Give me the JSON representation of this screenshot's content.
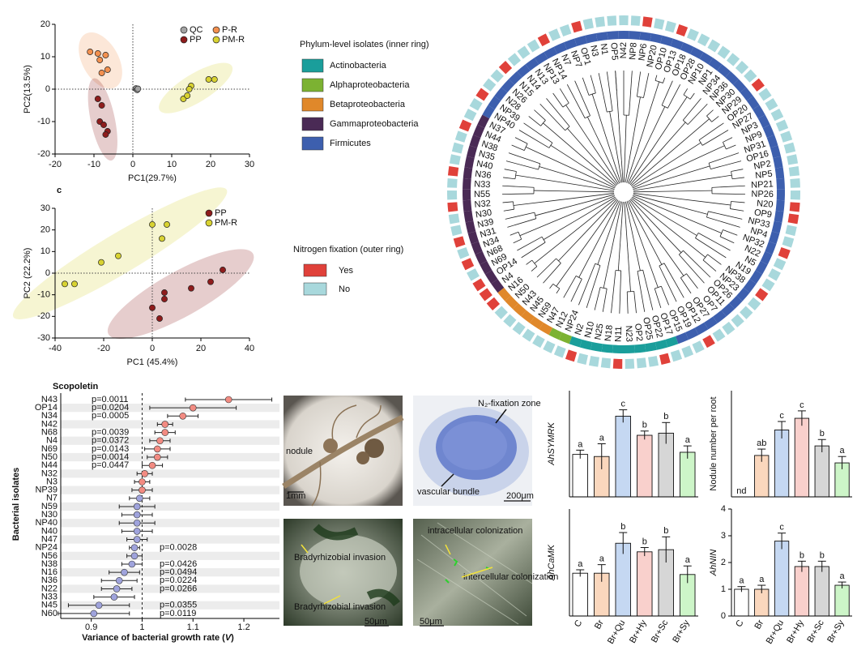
{
  "chart_data": [
    {
      "type": "scatter",
      "xlabel": "PC1(29.7%)",
      "ylabel": "PC2(13.5%)",
      "xlim": [
        -20,
        30
      ],
      "ylim": [
        -20,
        20
      ],
      "xticks": [
        -20,
        -10,
        0,
        10,
        20,
        30
      ],
      "yticks": [
        -20,
        -10,
        0,
        10,
        20
      ],
      "series": [
        {
          "name": "QC",
          "color": "#a3a3a3",
          "ellipse": false,
          "x": [
            0.8,
            1.1,
            1.3
          ],
          "y": [
            0.2,
            -0.2,
            0.1
          ]
        },
        {
          "name": "P-R",
          "color": "#f3904f",
          "ellipse": true,
          "x": [
            -11,
            -9,
            -7,
            -8.5,
            -6.5,
            -8
          ],
          "y": [
            11.5,
            11,
            10.5,
            9,
            6,
            5
          ]
        },
        {
          "name": "PP",
          "color": "#8e1c1c",
          "ellipse": true,
          "x": [
            -9,
            -8,
            -8.5,
            -7.5,
            -6.5,
            -7
          ],
          "y": [
            -3,
            -5,
            -10,
            -11,
            -13,
            -14
          ]
        },
        {
          "name": "PM-R",
          "color": "#d8d232",
          "ellipse": true,
          "x": [
            13,
            14,
            15,
            14.5,
            19.5,
            21
          ],
          "y": [
            -3,
            -2,
            1,
            0,
            3,
            3
          ]
        }
      ]
    },
    {
      "type": "scatter",
      "panel": "c",
      "xlabel": "PC1 (45.4%)",
      "ylabel": "PC2 (22.2%)",
      "xlim": [
        -40,
        40
      ],
      "ylim": [
        -30,
        30
      ],
      "xticks": [
        -40,
        -20,
        0,
        20,
        40
      ],
      "yticks": [
        -30,
        -20,
        -10,
        0,
        10,
        20,
        30
      ],
      "series": [
        {
          "name": "PP",
          "color": "#8e1c1c",
          "ellipse": true,
          "x": [
            29,
            24,
            16,
            5,
            5,
            0,
            3
          ],
          "y": [
            1.5,
            -4,
            -7,
            -9,
            -12,
            -16,
            -21
          ]
        },
        {
          "name": "PM-R",
          "color": "#d8d232",
          "ellipse": true,
          "x": [
            0,
            4,
            6,
            -21,
            -14,
            -36,
            -32
          ],
          "y": [
            22.5,
            16,
            22.5,
            5,
            8,
            -5,
            -5
          ]
        }
      ]
    },
    {
      "type": "tree",
      "phylum_title": "Phylum-level isolates (inner ring)",
      "nfix_title": "Nitrogen fixation (outer ring)",
      "phyla": [
        {
          "name": "Actinobacteria",
          "color": "#1a9e9b"
        },
        {
          "name": "Alphaproteobacteria",
          "color": "#7cb232"
        },
        {
          "name": "Betaproteobacteria",
          "color": "#e0882a"
        },
        {
          "name": "Gammaproteobacteria",
          "color": "#4a2a55"
        },
        {
          "name": "Firmicutes",
          "color": "#3d5fae"
        }
      ],
      "nfix": [
        {
          "name": "Yes",
          "color": "#e0413a"
        },
        {
          "name": "No",
          "color": "#a8d8dc"
        }
      ],
      "leaves": [
        {
          "name": "N42",
          "phylum": "Firmicutes",
          "nfix": "No"
        },
        {
          "name": "NP8",
          "phylum": "Firmicutes",
          "nfix": "No"
        },
        {
          "name": "NP6",
          "phylum": "Firmicutes",
          "nfix": "Yes"
        },
        {
          "name": "NP20",
          "phylum": "Firmicutes",
          "nfix": "No"
        },
        {
          "name": "OP10",
          "phylum": "Firmicutes",
          "nfix": "No"
        },
        {
          "name": "OP13",
          "phylum": "Firmicutes",
          "nfix": "Yes"
        },
        {
          "name": "OP18",
          "phylum": "Firmicutes",
          "nfix": "No"
        },
        {
          "name": "OP28",
          "phylum": "Firmicutes",
          "nfix": "No"
        },
        {
          "name": "NP10",
          "phylum": "Firmicutes",
          "nfix": "No"
        },
        {
          "name": "NP1",
          "phylum": "Firmicutes",
          "nfix": "No"
        },
        {
          "name": "NP34",
          "phylum": "Firmicutes",
          "nfix": "No"
        },
        {
          "name": "NP36",
          "phylum": "Firmicutes",
          "nfix": "No"
        },
        {
          "name": "NP30",
          "phylum": "Firmicutes",
          "nfix": "No"
        },
        {
          "name": "NP29",
          "phylum": "Firmicutes",
          "nfix": "Yes"
        },
        {
          "name": "OP20",
          "phylum": "Firmicutes",
          "nfix": "No"
        },
        {
          "name": "NP27",
          "phylum": "Firmicutes",
          "nfix": "No"
        },
        {
          "name": "NP3",
          "phylum": "Firmicutes",
          "nfix": "No"
        },
        {
          "name": "NP9",
          "phylum": "Firmicutes",
          "nfix": "No"
        },
        {
          "name": "NP31",
          "phylum": "Firmicutes",
          "nfix": "No"
        },
        {
          "name": "OP16",
          "phylum": "Firmicutes",
          "nfix": "No"
        },
        {
          "name": "NP2",
          "phylum": "Firmicutes",
          "nfix": "No"
        },
        {
          "name": "NP5",
          "phylum": "Firmicutes",
          "nfix": "No"
        },
        {
          "name": "NP21",
          "phylum": "Firmicutes",
          "nfix": "No"
        },
        {
          "name": "NP26",
          "phylum": "Firmicutes",
          "nfix": "No"
        },
        {
          "name": "N20",
          "phylum": "Firmicutes",
          "nfix": "Yes"
        },
        {
          "name": "OP9",
          "phylum": "Firmicutes",
          "nfix": "Yes"
        },
        {
          "name": "NP33",
          "phylum": "Firmicutes",
          "nfix": "No"
        },
        {
          "name": "NP4",
          "phylum": "Firmicutes",
          "nfix": "No"
        },
        {
          "name": "NP32",
          "phylum": "Firmicutes",
          "nfix": "Yes"
        },
        {
          "name": "N22",
          "phylum": "Firmicutes",
          "nfix": "No"
        },
        {
          "name": "N5",
          "phylum": "Firmicutes",
          "nfix": "No"
        },
        {
          "name": "N19",
          "phylum": "Firmicutes",
          "nfix": "No"
        },
        {
          "name": "NP38",
          "phylum": "Firmicutes",
          "nfix": "Yes"
        },
        {
          "name": "NP23",
          "phylum": "Firmicutes",
          "nfix": "No"
        },
        {
          "name": "OP26",
          "phylum": "Firmicutes",
          "nfix": "No"
        },
        {
          "name": "OP11",
          "phylum": "Firmicutes",
          "nfix": "No"
        },
        {
          "name": "OP7",
          "phylum": "Firmicutes",
          "nfix": "No"
        },
        {
          "name": "OP27",
          "phylum": "Firmicutes",
          "nfix": "No"
        },
        {
          "name": "OP12",
          "phylum": "Firmicutes",
          "nfix": "Yes"
        },
        {
          "name": "OP19",
          "phylum": "Firmicutes",
          "nfix": "No"
        },
        {
          "name": "OP15",
          "phylum": "Firmicutes",
          "nfix": "No"
        },
        {
          "name": "OP17",
          "phylum": "Actinobacteria",
          "nfix": "No"
        },
        {
          "name": "OP22",
          "phylum": "Actinobacteria",
          "nfix": "Yes"
        },
        {
          "name": "OP25",
          "phylum": "Actinobacteria",
          "nfix": "No"
        },
        {
          "name": "OP2",
          "phylum": "Actinobacteria",
          "nfix": "No"
        },
        {
          "name": "N23",
          "phylum": "Actinobacteria",
          "nfix": "No"
        },
        {
          "name": "N11",
          "phylum": "Actinobacteria",
          "nfix": "Yes"
        },
        {
          "name": "N18",
          "phylum": "Actinobacteria",
          "nfix": "No"
        },
        {
          "name": "N25",
          "phylum": "Actinobacteria",
          "nfix": "No"
        },
        {
          "name": "N10",
          "phylum": "Actinobacteria",
          "nfix": "No"
        },
        {
          "name": "N2",
          "phylum": "Actinobacteria",
          "nfix": "Yes"
        },
        {
          "name": "NP24",
          "phylum": "Alphaproteobacteria",
          "nfix": "No"
        },
        {
          "name": "N12",
          "phylum": "Alphaproteobacteria",
          "nfix": "No"
        },
        {
          "name": "N47",
          "phylum": "Betaproteobacteria",
          "nfix": "No",
          "color": "#3a6cb5"
        },
        {
          "name": "N59",
          "phylum": "Betaproteobacteria",
          "nfix": "No",
          "color": "#3a6cb5"
        },
        {
          "name": "N45",
          "phylum": "Betaproteobacteria",
          "nfix": "No",
          "color": "#3a6cb5"
        },
        {
          "name": "N43",
          "phylum": "Betaproteobacteria",
          "nfix": "No",
          "color": "#3a6cb5"
        },
        {
          "name": "N50",
          "phylum": "Betaproteobacteria",
          "nfix": "No"
        },
        {
          "name": "N16",
          "phylum": "Betaproteobacteria",
          "nfix": "Yes"
        },
        {
          "name": "N4",
          "phylum": "Gammaproteobacteria",
          "nfix": "Yes",
          "color": "#e0302a"
        },
        {
          "name": "OP14",
          "phylum": "Gammaproteobacteria",
          "nfix": "Yes",
          "color": "#e0302a"
        },
        {
          "name": "N69",
          "phylum": "Gammaproteobacteria",
          "nfix": "No",
          "color": "#e0302a"
        },
        {
          "name": "N68",
          "phylum": "Gammaproteobacteria",
          "nfix": "Yes",
          "color": "#e0302a"
        },
        {
          "name": "N34",
          "phylum": "Gammaproteobacteria",
          "nfix": "No"
        },
        {
          "name": "N31",
          "phylum": "Gammaproteobacteria",
          "nfix": "Yes"
        },
        {
          "name": "N39",
          "phylum": "Gammaproteobacteria",
          "nfix": "No"
        },
        {
          "name": "N30",
          "phylum": "Gammaproteobacteria",
          "nfix": "No"
        },
        {
          "name": "N32",
          "phylum": "Gammaproteobacteria",
          "nfix": "Yes"
        },
        {
          "name": "N55",
          "phylum": "Gammaproteobacteria",
          "nfix": "No"
        },
        {
          "name": "N33",
          "phylum": "Gammaproteobacteria",
          "nfix": "No"
        },
        {
          "name": "N36",
          "phylum": "Gammaproteobacteria",
          "nfix": "Yes"
        },
        {
          "name": "N40",
          "phylum": "Gammaproteobacteria",
          "nfix": "No"
        },
        {
          "name": "N35",
          "phylum": "Gammaproteobacteria",
          "nfix": "No"
        },
        {
          "name": "N38",
          "phylum": "Gammaproteobacteria",
          "nfix": "No"
        },
        {
          "name": "N44",
          "phylum": "Gammaproteobacteria",
          "nfix": "Yes"
        },
        {
          "name": "N37",
          "phylum": "Gammaproteobacteria",
          "nfix": "No"
        },
        {
          "name": "NP40",
          "phylum": "Firmicutes",
          "nfix": "No"
        },
        {
          "name": "NP39",
          "phylum": "Firmicutes",
          "nfix": "Yes"
        },
        {
          "name": "N28",
          "phylum": "Firmicutes",
          "nfix": "No"
        },
        {
          "name": "N26",
          "phylum": "Firmicutes",
          "nfix": "No"
        },
        {
          "name": "N15",
          "phylum": "Firmicutes",
          "nfix": "Yes"
        },
        {
          "name": "N14",
          "phylum": "Firmicutes",
          "nfix": "No"
        },
        {
          "name": "N13",
          "phylum": "Firmicutes",
          "nfix": "No"
        },
        {
          "name": "NP13",
          "phylum": "Firmicutes",
          "nfix": "No"
        },
        {
          "name": "NP14",
          "phylum": "Firmicutes",
          "nfix": "Yes"
        },
        {
          "name": "N7",
          "phylum": "Firmicutes",
          "nfix": "No"
        },
        {
          "name": "NP7",
          "phylum": "Firmicutes",
          "nfix": "No"
        },
        {
          "name": "OP1",
          "phylum": "Firmicutes",
          "nfix": "Yes"
        },
        {
          "name": "N3",
          "phylum": "Firmicutes",
          "nfix": "No"
        },
        {
          "name": "N1",
          "phylum": "Firmicutes",
          "nfix": "No"
        },
        {
          "name": "OP5",
          "phylum": "Firmicutes",
          "nfix": "No"
        }
      ]
    },
    {
      "type": "forest",
      "title": "Scopoletin",
      "xlabel": "Variance of bacterial growth rate (",
      "xlabel_var": "V",
      "xlabel_end": ")",
      "ylabel": "Bacterial isolates",
      "xlim": [
        0.84,
        1.27
      ],
      "xticks": [
        0.9,
        1.0,
        1.1,
        1.2
      ],
      "reference_line": 1.0,
      "categories": [
        "N43",
        "OP14",
        "N34",
        "N42",
        "N68",
        "N4",
        "N69",
        "N50",
        "N44",
        "N32",
        "N3",
        "NP39",
        "N7",
        "N59",
        "N30",
        "NP40",
        "N40",
        "N47",
        "NP24",
        "N56",
        "N38",
        "N16",
        "N36",
        "N22",
        "N33",
        "N45",
        "N60"
      ],
      "label_colors": [
        "#3a6cb5",
        "#e0302a",
        null,
        null,
        "#e0302a",
        "#e0302a",
        "#e0302a",
        null,
        null,
        null,
        null,
        null,
        null,
        "#3a6cb5",
        null,
        null,
        null,
        "#3a6cb5",
        null,
        null,
        null,
        null,
        null,
        null,
        null,
        "#3a6cb5",
        null
      ],
      "values": [
        1.17,
        1.1,
        1.08,
        1.045,
        1.045,
        1.035,
        1.03,
        1.03,
        1.02,
        1.005,
        1.0,
        1.0,
        0.995,
        0.99,
        0.99,
        0.99,
        0.99,
        0.99,
        0.985,
        0.985,
        0.98,
        0.965,
        0.955,
        0.95,
        0.945,
        0.915,
        0.905
      ],
      "errors": [
        0.085,
        0.085,
        0.03,
        0.015,
        0.02,
        0.02,
        0.025,
        0.02,
        0.02,
        0.015,
        0.015,
        0.02,
        0.02,
        0.035,
        0.03,
        0.035,
        0.03,
        0.02,
        0.01,
        0.015,
        0.02,
        0.03,
        0.035,
        0.03,
        0.04,
        0.06,
        0.07
      ],
      "p_labels": [
        "p=0.0011",
        "p=0.0204",
        "p=0.0005",
        null,
        "p=0.0039",
        "p=0.0372",
        "p=0.0143",
        "p=0.0014",
        "p=0.0447",
        null,
        null,
        null,
        null,
        null,
        null,
        null,
        null,
        null,
        "p=0.0028",
        null,
        "p=0.0426",
        "p=0.0494",
        "p=0.0224",
        "p=0.0266",
        null,
        "p=0.0355",
        "p=0.0119"
      ],
      "colors": [
        "#f28b82",
        "#f28b82",
        "#f28b82",
        "#f28b82",
        "#f28b82",
        "#f28b82",
        "#f28b82",
        "#f28b82",
        "#f28b82",
        "#f28b82",
        "#f28b82",
        "#f28b82",
        "#9fa3dc",
        "#9fa3dc",
        "#9fa3dc",
        "#9fa3dc",
        "#9fa3dc",
        "#9fa3dc",
        "#9fa3dc",
        "#9fa3dc",
        "#9fa3dc",
        "#9fa3dc",
        "#9fa3dc",
        "#9fa3dc",
        "#9fa3dc",
        "#9fa3dc",
        "#9fa3dc"
      ]
    },
    {
      "type": "bar",
      "ylabel": "AhSYMRK",
      "italic_ylabel": true,
      "ylim": [
        0,
        2.5
      ],
      "values": [
        1.0,
        0.95,
        1.9,
        1.45,
        1.5,
        1.05
      ],
      "errors": [
        0.1,
        0.3,
        0.15,
        0.1,
        0.25,
        0.15
      ],
      "letters": [
        "a",
        "a",
        "c",
        "b",
        "b",
        "a"
      ],
      "colors": [
        "#ffffff",
        "#fad7bd",
        "#c5d8f2",
        "#f9d0cc",
        "#d6d6d6",
        "#cdf5c8"
      ]
    },
    {
      "type": "bar",
      "ylabel": "Nodule number per root",
      "italic_ylabel": false,
      "ylim": [
        0,
        50
      ],
      "values": [
        0,
        19.5,
        31.5,
        37,
        24,
        16
      ],
      "errors": [
        0,
        3,
        4,
        3.5,
        3,
        3
      ],
      "letters": [
        "nd",
        "ab",
        "c",
        "c",
        "b",
        "a"
      ],
      "colors": [
        "#ffffff",
        "#fad7bd",
        "#c5d8f2",
        "#f9d0cc",
        "#d6d6d6",
        "#cdf5c8"
      ]
    },
    {
      "type": "bar",
      "ylabel": "AhCaMK",
      "italic_ylabel": true,
      "ylim": [
        0,
        2.5
      ],
      "categories": [
        "C",
        "Br",
        "Br+Qu",
        "Br+Hy",
        "Br+Sc",
        "Br+Sy"
      ],
      "values": [
        1.0,
        1.0,
        1.7,
        1.5,
        1.55,
        0.97
      ],
      "errors": [
        0.08,
        0.2,
        0.25,
        0.1,
        0.3,
        0.2
      ],
      "letters": [
        "a",
        "a",
        "b",
        "b",
        "b",
        "a"
      ],
      "colors": [
        "#ffffff",
        "#fad7bd",
        "#c5d8f2",
        "#f9d0cc",
        "#d6d6d6",
        "#cdf5c8"
      ]
    },
    {
      "type": "bar",
      "ylabel": "AhNIN",
      "italic_ylabel": true,
      "ylim": [
        0,
        4
      ],
      "yticks": [
        0,
        1,
        2,
        3,
        4
      ],
      "categories": [
        "C",
        "Br",
        "Br+Qu",
        "Br+Hy",
        "Br+Sc",
        "Br+Sy"
      ],
      "values": [
        1.0,
        1.0,
        2.8,
        1.85,
        1.85,
        1.15
      ],
      "errors": [
        0.1,
        0.15,
        0.3,
        0.2,
        0.2,
        0.12
      ],
      "letters": [
        "a",
        "a",
        "c",
        "b",
        "b",
        "a"
      ],
      "colors": [
        "#ffffff",
        "#fad7bd",
        "#c5d8f2",
        "#f9d0cc",
        "#d6d6d6",
        "#cdf5c8"
      ]
    }
  ],
  "micrographs": [
    {
      "labels": [
        "nodule",
        "1mm"
      ]
    },
    {
      "labels": [
        "N₂-fixation zone",
        "vascular bundle",
        "200μm"
      ]
    },
    {
      "labels": [
        "Bradyrhizobial invasion",
        "Bradyrhizobial invasion",
        "50μm"
      ]
    },
    {
      "labels": [
        "intracellular colonization",
        "intercellular colonization",
        "50μm"
      ]
    }
  ]
}
